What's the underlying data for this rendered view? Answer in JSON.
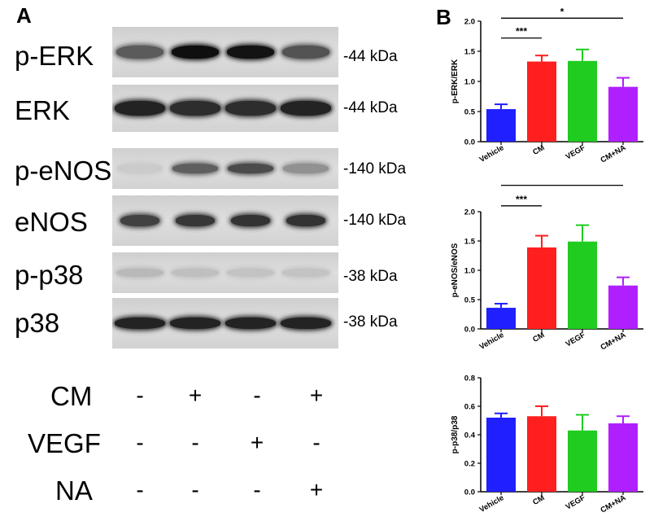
{
  "panelA": {
    "letter": "A",
    "blots": [
      {
        "label": "p-ERK",
        "kda": "-44 kDa",
        "intensity": [
          0.62,
          1.0,
          0.98,
          0.66
        ]
      },
      {
        "label": "ERK",
        "kda": "-44 kDa",
        "intensity": [
          0.9,
          0.85,
          0.85,
          0.9
        ]
      },
      {
        "label": "p-eNOS",
        "kda": "-140 kDa",
        "intensity": [
          0.06,
          0.6,
          0.7,
          0.35
        ]
      },
      {
        "label": "eNOS",
        "kda": "-140 kDa",
        "intensity": [
          0.75,
          0.8,
          0.82,
          0.82
        ]
      },
      {
        "label": "p-p38",
        "kda": "-38 kDa",
        "intensity": [
          0.15,
          0.12,
          0.1,
          0.1
        ]
      },
      {
        "label": "p38",
        "kda": "-38 kDa",
        "intensity": [
          0.9,
          0.9,
          0.9,
          0.9
        ]
      }
    ],
    "conditions": [
      {
        "label": "CM",
        "signs": [
          "-",
          "+",
          "-",
          "+"
        ]
      },
      {
        "label": "VEGF",
        "signs": [
          "-",
          "-",
          "+",
          "-"
        ]
      },
      {
        "label": "NA",
        "signs": [
          "-",
          "-",
          "-",
          "+"
        ]
      }
    ]
  },
  "panelB": {
    "letter": "B"
  },
  "chart_data": [
    {
      "type": "bar",
      "categories": [
        "Vehicle",
        "CM",
        "VEGF",
        "CM+NA"
      ],
      "values": [
        0.54,
        1.33,
        1.34,
        0.91
      ],
      "errors": [
        0.08,
        0.1,
        0.19,
        0.15
      ],
      "ylabel": "p-ERK/ERK",
      "ylim": [
        0,
        2.0
      ],
      "yticks": [
        "0.0",
        "0.5",
        "1.0",
        "1.5",
        "2.0"
      ],
      "colors": [
        "#1f1fff",
        "#ff1f1f",
        "#1fcc1f",
        "#b01fff"
      ],
      "significance": [
        {
          "text": "***",
          "from": 0,
          "to": 1,
          "level": 1.72
        },
        {
          "text": "*",
          "from": 0,
          "to": 3,
          "level": 2.05
        }
      ]
    },
    {
      "type": "bar",
      "categories": [
        "Vehicle",
        "CM",
        "VEGF",
        "CM+NA"
      ],
      "values": [
        0.36,
        1.39,
        1.49,
        0.74
      ],
      "errors": [
        0.07,
        0.2,
        0.28,
        0.14
      ],
      "ylabel": "p-eNOS/eNOS",
      "ylim": [
        0,
        2.0
      ],
      "yticks": [
        "0.0",
        "0.5",
        "1.0",
        "1.5",
        "2.0"
      ],
      "colors": [
        "#1f1fff",
        "#ff1f1f",
        "#1fcc1f",
        "#b01fff"
      ],
      "significance": [
        {
          "text": "***",
          "from": 0,
          "to": 1,
          "level": 2.1
        },
        {
          "text": "*",
          "from": 0,
          "to": 3,
          "level": 2.45
        }
      ]
    },
    {
      "type": "bar",
      "categories": [
        "Vehicle",
        "CM",
        "VEGF",
        "CM+NA"
      ],
      "values": [
        0.52,
        0.53,
        0.43,
        0.48
      ],
      "errors": [
        0.03,
        0.07,
        0.11,
        0.05
      ],
      "ylabel": "p-p38/p38",
      "ylim": [
        0,
        0.8
      ],
      "yticks": [
        "0.0",
        "0.2",
        "0.4",
        "0.6",
        "0.8"
      ],
      "colors": [
        "#1f1fff",
        "#ff1f1f",
        "#1fcc1f",
        "#b01fff"
      ],
      "significance": []
    }
  ]
}
